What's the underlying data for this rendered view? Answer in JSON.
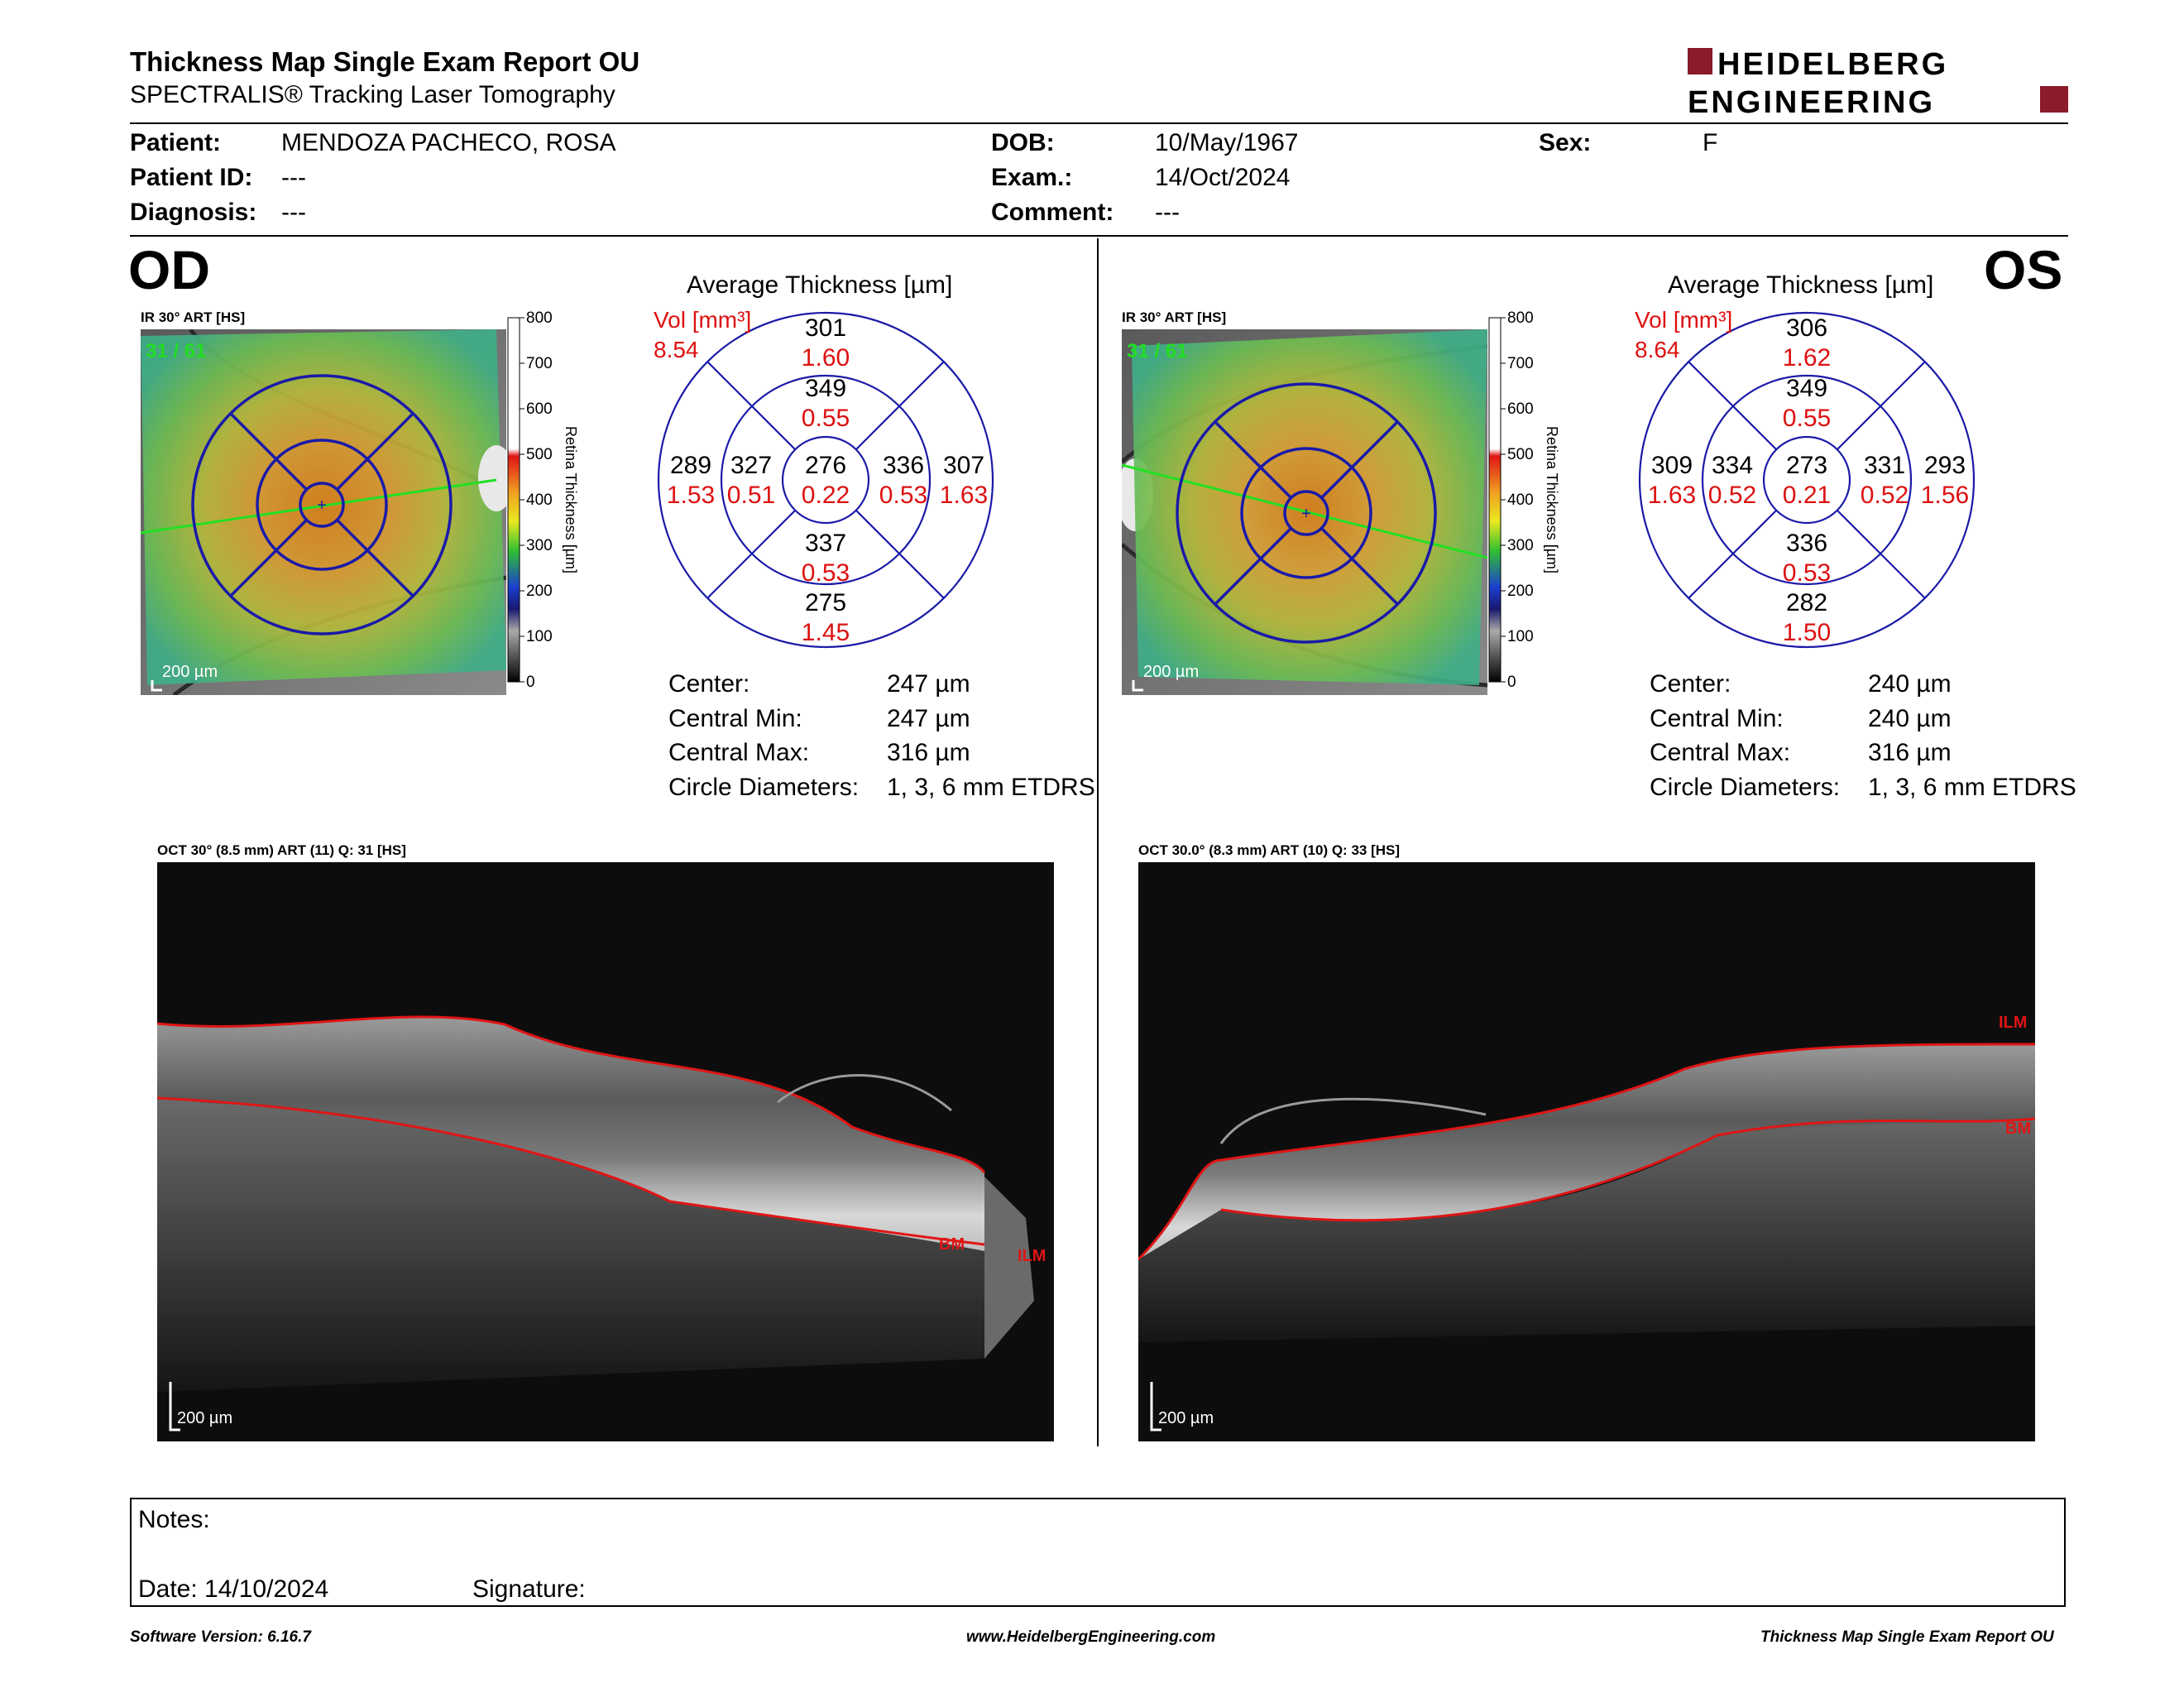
{
  "header": {
    "title": "Thickness Map Single Exam Report OU",
    "subtitle": "SPECTRALIS® Tracking Laser Tomography",
    "logo_line1": "HEIDELBERG",
    "logo_line2": "ENGINEERING"
  },
  "patient": {
    "patient_label": "Patient:",
    "patient_value": "MENDOZA PACHECO, ROSA",
    "id_label": "Patient ID:",
    "id_value": "---",
    "diag_label": "Diagnosis:",
    "diag_value": "---",
    "dob_label": "DOB:",
    "dob_value": "10/May/1967",
    "exam_label": "Exam.:",
    "exam_value": "14/Oct/2024",
    "comment_label": "Comment:",
    "comment_value": "---",
    "sex_label": "Sex:",
    "sex_value": "F"
  },
  "scale": {
    "title": "Retina Thickness [µm]",
    "ticks": [
      "800",
      "700",
      "600",
      "500",
      "400",
      "300",
      "200",
      "100",
      "0"
    ]
  },
  "od": {
    "eye": "OD",
    "ir_label": "IR 30° ART [HS]",
    "frame": "31 / 61",
    "scalebar": "200 µm",
    "avg_title": "Average Thickness [µm]",
    "vol_label": "Vol [mm³]",
    "vol_total": "8.54",
    "sectors": {
      "center": {
        "t": "276",
        "v": "0.22"
      },
      "inner_sup": {
        "t": "349",
        "v": "0.55"
      },
      "inner_inf": {
        "t": "337",
        "v": "0.53"
      },
      "inner_left": {
        "t": "327",
        "v": "0.51"
      },
      "inner_right": {
        "t": "336",
        "v": "0.53"
      },
      "outer_sup": {
        "t": "301",
        "v": "1.60"
      },
      "outer_inf": {
        "t": "275",
        "v": "1.45"
      },
      "outer_left": {
        "t": "289",
        "v": "1.53"
      },
      "outer_right": {
        "t": "307",
        "v": "1.63"
      }
    },
    "stats": [
      {
        "label": "Center:",
        "value": "247 µm"
      },
      {
        "label": "Central Min:",
        "value": "247 µm"
      },
      {
        "label": "Central Max:",
        "value": "316 µm"
      },
      {
        "label": "Circle Diameters:",
        "value": "1, 3, 6 mm ETDRS"
      }
    ],
    "oct_label": "OCT 30° (8.5 mm) ART (11) Q: 31 [HS]",
    "oct_scalebar": "200 µm",
    "ilm": "ILM",
    "bm": "BM"
  },
  "os": {
    "eye": "OS",
    "ir_label": "IR 30° ART [HS]",
    "frame": "31 / 61",
    "scalebar": "200 µm",
    "avg_title": "Average Thickness [µm]",
    "vol_label": "Vol [mm³]",
    "vol_total": "8.64",
    "sectors": {
      "center": {
        "t": "273",
        "v": "0.21"
      },
      "inner_sup": {
        "t": "349",
        "v": "0.55"
      },
      "inner_inf": {
        "t": "336",
        "v": "0.53"
      },
      "inner_left": {
        "t": "334",
        "v": "0.52"
      },
      "inner_right": {
        "t": "331",
        "v": "0.52"
      },
      "outer_sup": {
        "t": "306",
        "v": "1.62"
      },
      "outer_inf": {
        "t": "282",
        "v": "1.50"
      },
      "outer_left": {
        "t": "309",
        "v": "1.63"
      },
      "outer_right": {
        "t": "293",
        "v": "1.56"
      }
    },
    "stats": [
      {
        "label": "Center:",
        "value": "240 µm"
      },
      {
        "label": "Central Min:",
        "value": "240 µm"
      },
      {
        "label": "Central Max:",
        "value": "316 µm"
      },
      {
        "label": "Circle Diameters:",
        "value": "1, 3, 6 mm ETDRS"
      }
    ],
    "oct_label": "OCT 30.0° (8.3 mm) ART (10) Q: 33 [HS]",
    "oct_scalebar": "200 µm",
    "ilm": "ILM",
    "bm": "BM"
  },
  "notes": {
    "notes_label": "Notes:",
    "date_text": "Date: 14/10/2024",
    "signature_label": "Signature:"
  },
  "footer": {
    "software": "Software Version: 6.16.7",
    "url": "www.HeidelbergEngineering.com",
    "report": "Thickness Map Single Exam Report OU"
  },
  "colors": {
    "etdrs_grid": "#1a1aa8",
    "volume_red": "#dd1111",
    "brand_red": "#8b1a2b",
    "segmentation_red": "#e01515",
    "frame_green": "#22dd22"
  }
}
